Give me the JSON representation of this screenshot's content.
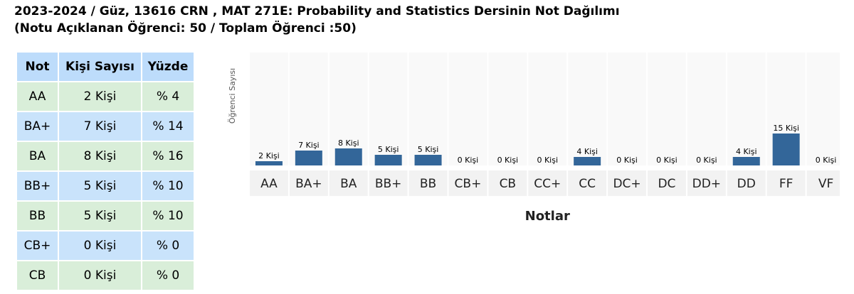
{
  "page": {
    "title_line1": "2023-2024 / Güz, 13616 CRN , MAT 271E: Probability and Statistics Dersinin Not Dağılımı",
    "title_line2": "(Notu Açıklanan Öğrenci: 50 / Toplam Öğrenci :50)"
  },
  "table": {
    "headers": [
      "Not",
      "Kişi Sayısı",
      "Yüzde"
    ],
    "rows": [
      {
        "grade": "AA",
        "count": "2 Kişi",
        "percent": "% 4"
      },
      {
        "grade": "BA+",
        "count": "7 Kişi",
        "percent": "% 14"
      },
      {
        "grade": "BA",
        "count": "8 Kişi",
        "percent": "% 16"
      },
      {
        "grade": "BB+",
        "count": "5 Kişi",
        "percent": "% 10"
      },
      {
        "grade": "BB",
        "count": "5 Kişi",
        "percent": "% 10"
      },
      {
        "grade": "CB+",
        "count": "0 Kişi",
        "percent": "% 0"
      },
      {
        "grade": "CB",
        "count": "0 Kişi",
        "percent": "% 0"
      }
    ]
  },
  "chart_data": {
    "type": "bar",
    "categories": [
      "AA",
      "BA+",
      "BA",
      "BB+",
      "BB",
      "CB+",
      "CB",
      "CC+",
      "CC",
      "DC+",
      "DC",
      "DD+",
      "DD",
      "FF",
      "VF"
    ],
    "values": [
      2,
      7,
      8,
      5,
      5,
      0,
      0,
      0,
      4,
      0,
      0,
      0,
      4,
      15,
      0
    ],
    "data_labels": [
      "2 Kişi",
      "7 Kişi",
      "8 Kişi",
      "5 Kişi",
      "5 Kişi",
      "0 Kişi",
      "0 Kişi",
      "0 Kişi",
      "4 Kişi",
      "0 Kişi",
      "0 Kişi",
      "0 Kişi",
      "4 Kişi",
      "15 Kişi",
      "0 Kişi"
    ],
    "xlabel": "Notlar",
    "ylabel": "Öğrenci Sayısı",
    "ylim": [
      0,
      15
    ],
    "bar_color": "#336699",
    "grid": false,
    "legend": "none"
  }
}
